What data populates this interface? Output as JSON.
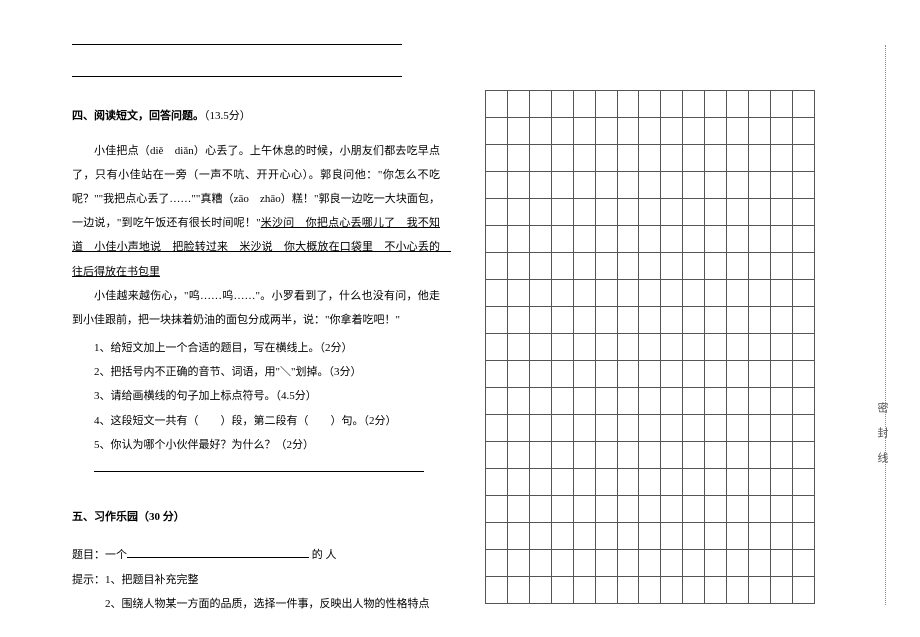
{
  "top_blanks": {
    "line1": "",
    "line2": ""
  },
  "section4": {
    "heading": "四、阅读短文，回答问题。",
    "points": "（13.5分）",
    "passage": {
      "p1": "小佳把点（diě　diǎn）心丢了。上午休息的时候，小朋友们都去吃早点了，只有小佳站在一旁（一声不吭、开开心心）。郭良问他：\"你怎么不吃呢？\"\"我把点心丢了……\"\"真糟（zāo　zhāo）糕！\"郭良一边吃一大块面包，一边说，\"到吃午饭还有很长时间呢！\"",
      "underline": "米沙问　你把点心丢哪儿了　我不知道　小佳小声地说　把脸转过来　米沙说　你大概放在口袋里　不小心丢的　往后得放在书包里",
      "p2": "小佳越来越伤心，\"呜……呜……\"。小罗看到了，什么也没有问，他走到小佳跟前，把一块抹着奶油的面包分成两半，说：\"你拿着吃吧！\""
    },
    "questions": {
      "q1": "1、给短文加上一个合适的题目，写在横线上。（2分）",
      "q2": "2、把括号内不正确的音节、词语，用\"＼\"划掉。（3分）",
      "q3": "3、请给画横线的句子加上标点符号。（4.5分）",
      "q4": "4、这段短文一共有（　　）段，第二段有（　　）句。（2分）",
      "q5": "5、你认为哪个小伙伴最好？为什么？（2分）"
    }
  },
  "section5": {
    "heading": "五、习作乐园（30 分）",
    "topic_label": "题目：一个",
    "topic_suffix": " 的 人",
    "hints_label": "提示：",
    "hint1": "1、把题目补充完整",
    "hint2": "2、围绕人物某一方面的品质，选择一件事，反映出人物的性格特点"
  },
  "grid": {
    "rows": 19,
    "cols": 15
  },
  "side_label": "密封线",
  "styling": {
    "font_family": "SimSun",
    "font_size_body": 11,
    "line_height": 2.2,
    "text_color": "#000000",
    "background_color": "#ffffff",
    "grid_border_color": "#555555",
    "grid_cell_width": 22,
    "grid_cell_height": 27,
    "dotted_line_color": "#888888"
  }
}
